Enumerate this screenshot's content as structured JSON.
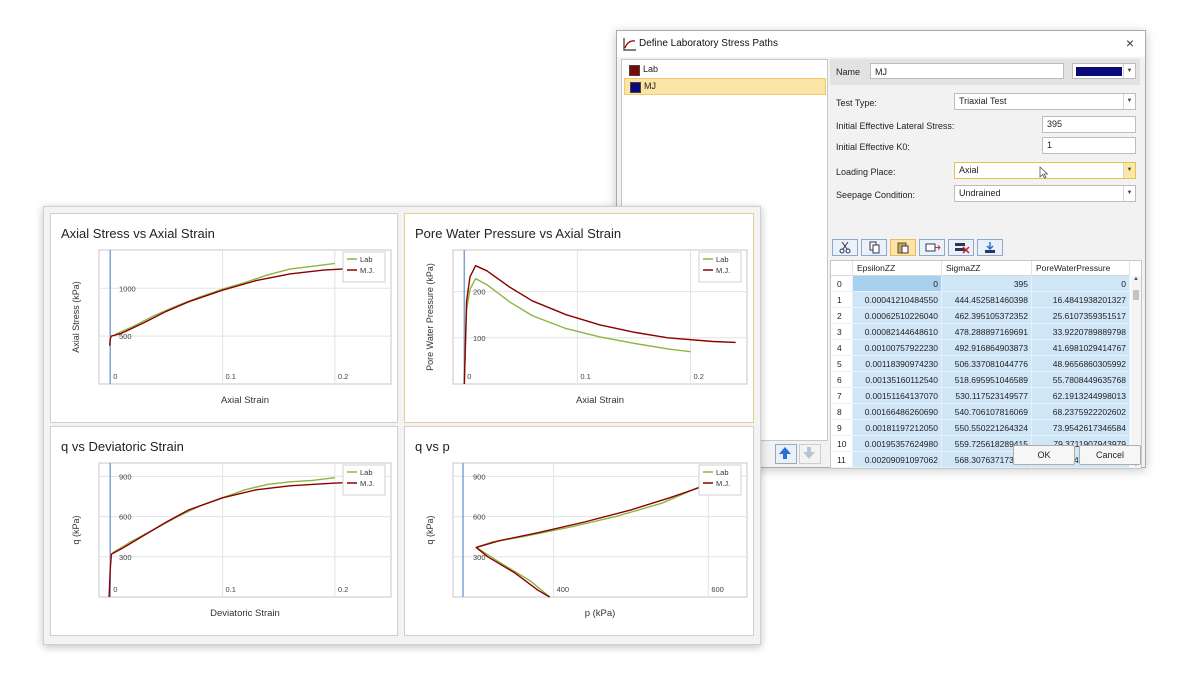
{
  "dialog": {
    "title": "Define Laboratory Stress Paths",
    "close_label": "×",
    "paths": [
      {
        "label": "Lab",
        "color": "#7a0a0a"
      },
      {
        "label": "MJ",
        "color": "#0a0a78"
      }
    ],
    "name_label": "Name",
    "name_value": "MJ",
    "color_value": "#0a0a78",
    "test_type_label": "Test Type:",
    "test_type_value": "Triaxial Test",
    "lateral_stress_label": "Initial Effective Lateral Stress:",
    "lateral_stress_value": "395",
    "k0_label": "Initial Effective K0:",
    "k0_value": "1",
    "loading_place_label": "Loading Place:",
    "loading_place_value": "Axial",
    "seepage_label": "Seepage Condition:",
    "seepage_value": "Undrained",
    "toolbar_icons": [
      "cut-icon",
      "copy-icon",
      "paste-icon",
      "insert-row-icon",
      "delete-row-icon",
      "import-icon"
    ],
    "table": {
      "columns": [
        "EpsilonZZ",
        "SigmaZZ",
        "PoreWaterPressure"
      ],
      "rows": [
        {
          "index": "0",
          "values": [
            "0",
            "395",
            "0"
          ]
        },
        {
          "index": "1",
          "values": [
            "0.00041210484550",
            "444.452581460398",
            "16.4841938201327"
          ]
        },
        {
          "index": "2",
          "values": [
            "0.00062510226040",
            "462.395105372352",
            "25.6107359351517"
          ]
        },
        {
          "index": "3",
          "values": [
            "0.00082144648610",
            "478.288897169691",
            "33.9220789889798"
          ]
        },
        {
          "index": "4",
          "values": [
            "0.00100757922230",
            "492.916864903873",
            "41.6981029414767"
          ]
        },
        {
          "index": "5",
          "values": [
            "0.00118390974230",
            "506.337081044776",
            "48.9656860305992"
          ]
        },
        {
          "index": "6",
          "values": [
            "0.00135160112540",
            "518.695951046589",
            "55.7808449635768"
          ]
        },
        {
          "index": "7",
          "values": [
            "0.00151164137070",
            "530.117523149577",
            "62.1913244998013"
          ]
        },
        {
          "index": "8",
          "values": [
            "0.00166486260690",
            "540.706107816069",
            "68.2375922202602"
          ]
        },
        {
          "index": "9",
          "values": [
            "0.00181197212050",
            "550.550221264324",
            "73.9542617346584"
          ]
        },
        {
          "index": "10",
          "values": [
            "0.00195357624980",
            "559.725618289415",
            "79.3711907943979"
          ]
        },
        {
          "index": "11",
          "values": [
            "0.00209091097062",
            "568.307637173913",
            "84.5142301683849"
          ]
        }
      ]
    },
    "ok_label": "OK",
    "cancel_label": "Cancel"
  },
  "chart_data": [
    {
      "type": "line",
      "title": "Axial Stress vs Axial Strain",
      "xlabel": "Axial Strain",
      "ylabel": "Axial Stress (kPa)",
      "xlim": [
        -0.01,
        0.25
      ],
      "ylim": [
        0,
        1400
      ],
      "xticks": [
        {
          "v": 0,
          "l": "0"
        },
        {
          "v": 0.1,
          "l": "0.1"
        },
        {
          "v": 0.2,
          "l": "0.2"
        }
      ],
      "yticks": [
        {
          "v": 500,
          "l": "500"
        },
        {
          "v": 1000,
          "l": "1000"
        }
      ],
      "legend": "top-right",
      "series": [
        {
          "name": "Lab",
          "color": "#8db543",
          "points": [
            [
              0.005,
              520
            ],
            [
              0.02,
              600
            ],
            [
              0.04,
              720
            ],
            [
              0.06,
              820
            ],
            [
              0.08,
              910
            ],
            [
              0.1,
              990
            ],
            [
              0.12,
              1060
            ],
            [
              0.14,
              1140
            ],
            [
              0.16,
              1200
            ],
            [
              0.18,
              1230
            ],
            [
              0.2,
              1260
            ]
          ]
        },
        {
          "name": "M.J.",
          "color": "#8b0000",
          "points": [
            [
              -0.0005,
              400
            ],
            [
              0,
              470
            ],
            [
              0.001,
              500
            ],
            [
              0.01,
              530
            ],
            [
              0.03,
              640
            ],
            [
              0.05,
              760
            ],
            [
              0.07,
              860
            ],
            [
              0.1,
              980
            ],
            [
              0.13,
              1080
            ],
            [
              0.16,
              1150
            ],
            [
              0.19,
              1190
            ],
            [
              0.22,
              1210
            ],
            [
              0.24,
              1215
            ]
          ]
        }
      ]
    },
    {
      "type": "line",
      "title": "Pore Water Pressure vs Axial Strain",
      "xlabel": "Axial Strain",
      "ylabel": "Pore Water Pressure (kPa)",
      "xlim": [
        -0.01,
        0.25
      ],
      "ylim": [
        0,
        290
      ],
      "xticks": [
        {
          "v": 0,
          "l": "0"
        },
        {
          "v": 0.1,
          "l": "0.1"
        },
        {
          "v": 0.2,
          "l": "0.2"
        }
      ],
      "yticks": [
        {
          "v": 100,
          "l": "100"
        },
        {
          "v": 200,
          "l": "200"
        }
      ],
      "legend": "top-right",
      "series": [
        {
          "name": "Lab",
          "color": "#8db543",
          "points": [
            [
              0,
              0
            ],
            [
              0.002,
              160
            ],
            [
              0.005,
              205
            ],
            [
              0.01,
              228
            ],
            [
              0.02,
              215
            ],
            [
              0.04,
              178
            ],
            [
              0.06,
              148
            ],
            [
              0.09,
              120
            ],
            [
              0.12,
              102
            ],
            [
              0.15,
              88
            ],
            [
              0.18,
              76
            ],
            [
              0.2,
              70
            ]
          ]
        },
        {
          "name": "M.J.",
          "color": "#8b0000",
          "points": [
            [
              0,
              0
            ],
            [
              0.002,
              180
            ],
            [
              0.005,
              232
            ],
            [
              0.01,
              256
            ],
            [
              0.02,
              245
            ],
            [
              0.04,
              210
            ],
            [
              0.06,
              180
            ],
            [
              0.09,
              150
            ],
            [
              0.12,
              128
            ],
            [
              0.15,
              112
            ],
            [
              0.18,
              100
            ],
            [
              0.22,
              92
            ],
            [
              0.24,
              90
            ]
          ]
        }
      ]
    },
    {
      "type": "line",
      "title": "q vs Deviatoric Strain",
      "xlabel": "Deviatoric Strain",
      "ylabel": "q (kPa)",
      "xlim": [
        -0.01,
        0.25
      ],
      "ylim": [
        0,
        1000
      ],
      "xticks": [
        {
          "v": 0,
          "l": "0"
        },
        {
          "v": 0.1,
          "l": "0.1"
        },
        {
          "v": 0.2,
          "l": "0.2"
        }
      ],
      "yticks": [
        {
          "v": 300,
          "l": "300"
        },
        {
          "v": 600,
          "l": "600"
        },
        {
          "v": 900,
          "l": "900"
        }
      ],
      "legend": "top-right",
      "series": [
        {
          "name": "Lab",
          "color": "#8db543",
          "points": [
            [
              0.002,
              330
            ],
            [
              0.02,
              420
            ],
            [
              0.04,
              510
            ],
            [
              0.06,
              600
            ],
            [
              0.08,
              680
            ],
            [
              0.1,
              740
            ],
            [
              0.12,
              800
            ],
            [
              0.14,
              840
            ],
            [
              0.16,
              860
            ],
            [
              0.18,
              870
            ],
            [
              0.2,
              890
            ]
          ]
        },
        {
          "name": "M.J.",
          "color": "#8b0000",
          "points": [
            [
              -0.001,
              0
            ],
            [
              0,
              200
            ],
            [
              0.001,
              320
            ],
            [
              0.01,
              360
            ],
            [
              0.03,
              460
            ],
            [
              0.05,
              560
            ],
            [
              0.07,
              650
            ],
            [
              0.1,
              740
            ],
            [
              0.13,
              800
            ],
            [
              0.16,
              830
            ],
            [
              0.2,
              850
            ],
            [
              0.24,
              860
            ]
          ]
        }
      ]
    },
    {
      "type": "line",
      "title": "q vs p",
      "xlabel": "p (kPa)",
      "ylabel": "q (kPa)",
      "xlim": [
        270,
        650
      ],
      "ylim": [
        0,
        1000
      ],
      "xticks": [
        {
          "v": 400,
          "l": "400"
        },
        {
          "v": 600,
          "l": "600"
        }
      ],
      "yticks": [
        {
          "v": 300,
          "l": "300"
        },
        {
          "v": 600,
          "l": "600"
        },
        {
          "v": 900,
          "l": "900"
        }
      ],
      "legend": "top-right",
      "series": [
        {
          "name": "Lab",
          "color": "#8db543",
          "points": [
            [
              395,
              0
            ],
            [
              370,
              120
            ],
            [
              330,
              260
            ],
            [
              300,
              370
            ],
            [
              320,
              410
            ],
            [
              360,
              450
            ],
            [
              420,
              520
            ],
            [
              480,
              600
            ],
            [
              540,
              700
            ],
            [
              580,
              800
            ],
            [
              610,
              880
            ],
            [
              620,
              890
            ]
          ]
        },
        {
          "name": "M.J.",
          "color": "#8b0000",
          "points": [
            [
              395,
              0
            ],
            [
              380,
              50
            ],
            [
              350,
              180
            ],
            [
              315,
              300
            ],
            [
              300,
              370
            ],
            [
              330,
              420
            ],
            [
              380,
              480
            ],
            [
              440,
              560
            ],
            [
              500,
              650
            ],
            [
              550,
              740
            ],
            [
              590,
              820
            ],
            [
              600,
              860
            ]
          ]
        }
      ]
    }
  ]
}
